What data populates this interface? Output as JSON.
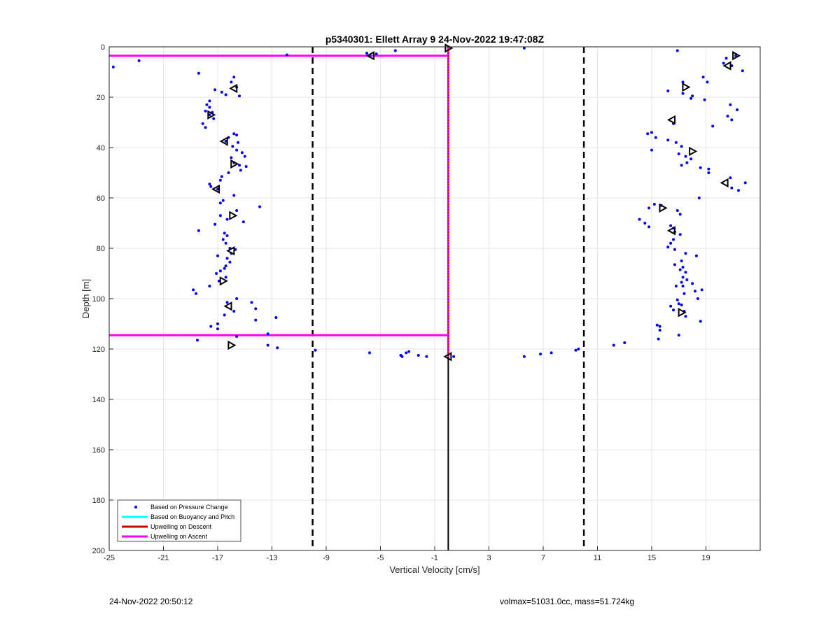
{
  "chart_data": {
    "type": "scatter",
    "title": "p5340301: Ellett Array 9 24-Nov-2022 19:47:08Z",
    "xlabel": "Vertical Velocity [cm/s]",
    "ylabel": "Depth [m]",
    "xlim": [
      -25,
      23
    ],
    "ylim": [
      0,
      200
    ],
    "y_reversed": true,
    "grid": true,
    "xticks": [
      -25,
      -21,
      -17,
      -13,
      -9,
      -5,
      -1,
      3,
      7,
      11,
      15,
      19
    ],
    "yticks": [
      0,
      20,
      40,
      60,
      80,
      100,
      120,
      140,
      160,
      180,
      200
    ],
    "legend_position": "bottom-left",
    "legend": [
      {
        "label": "Based on Pressure Change",
        "color": "#0000ff",
        "marker": "dot"
      },
      {
        "label": "Based on Buoyancy and Pitch",
        "color": "#00ffff",
        "marker": "line"
      },
      {
        "label": "Upwelling on Descent",
        "color": "#cc0000",
        "marker": "line"
      },
      {
        "label": "Upwelling on Ascent",
        "color": "#ff00ff",
        "marker": "line"
      }
    ],
    "threshold_lines": {
      "style": "dashed",
      "color": "#000000",
      "x": [
        -10,
        10
      ]
    },
    "zero_line": {
      "x": 0,
      "y_from": 123,
      "y_to": 200,
      "color": "#000000"
    },
    "upwelling_descent": {
      "color": "#cc0000",
      "x": [
        0,
        0
      ],
      "y": [
        0,
        123
      ]
    },
    "upwelling_ascent": {
      "color": "#ff00ff",
      "segments": [
        {
          "x": [
            -25,
            0
          ],
          "y": [
            3.5,
            3.5
          ]
        },
        {
          "x": [
            -25,
            0
          ],
          "y": [
            114.5,
            114.5
          ]
        },
        {
          "x": [
            0,
            0
          ],
          "y": [
            0,
            123
          ]
        }
      ]
    },
    "series": [
      {
        "name": "Based on Pressure Change",
        "color": "#0000ff",
        "points": [
          [
            -24.7,
            8
          ],
          [
            -22.8,
            5.5
          ],
          [
            -11.9,
            3.2
          ],
          [
            -6.0,
            2.5
          ],
          [
            -5.3,
            2.8
          ],
          [
            -3.9,
            1.5
          ],
          [
            -5.8,
            3.8
          ],
          [
            5.6,
            0.5
          ],
          [
            -18.4,
            10.5
          ],
          [
            -15.8,
            12
          ],
          [
            -16.0,
            14
          ],
          [
            -15.6,
            16
          ],
          [
            -17.2,
            17
          ],
          [
            -16.7,
            18
          ],
          [
            -16.4,
            19
          ],
          [
            -15.4,
            19.5
          ],
          [
            -17.6,
            21.5
          ],
          [
            -17.8,
            23
          ],
          [
            -17.6,
            24
          ],
          [
            -17.9,
            25.5
          ],
          [
            -17.4,
            26
          ],
          [
            -17.6,
            27
          ],
          [
            -17.3,
            28.5
          ],
          [
            -18.1,
            30.5
          ],
          [
            -17.9,
            32
          ],
          [
            -15.8,
            34.5
          ],
          [
            -15.6,
            35
          ],
          [
            -16.2,
            36
          ],
          [
            -16.4,
            37.5
          ],
          [
            -15.5,
            38
          ],
          [
            -15.9,
            39.5
          ],
          [
            -15.6,
            41
          ],
          [
            -15.2,
            42
          ],
          [
            -15.0,
            43.5
          ],
          [
            -16.0,
            44
          ],
          [
            -15.8,
            46
          ],
          [
            -15.4,
            47
          ],
          [
            -14.9,
            47.5
          ],
          [
            -15.3,
            49
          ],
          [
            -16.2,
            50
          ],
          [
            -16.7,
            51.5
          ],
          [
            -16.8,
            53
          ],
          [
            -17.6,
            54.5
          ],
          [
            -17.5,
            55.5
          ],
          [
            -17.0,
            56.5
          ],
          [
            -15.8,
            59
          ],
          [
            -16.6,
            61
          ],
          [
            -16.8,
            62
          ],
          [
            -15.6,
            65
          ],
          [
            -13.9,
            63.5
          ],
          [
            -16.8,
            67
          ],
          [
            -16.3,
            68.5
          ],
          [
            -15.1,
            69.5
          ],
          [
            -17.2,
            70.5
          ],
          [
            -18.4,
            73
          ],
          [
            -16.5,
            74
          ],
          [
            -16.3,
            75
          ],
          [
            -16.6,
            76.5
          ],
          [
            -16.4,
            78
          ],
          [
            -16.1,
            80
          ],
          [
            -15.7,
            80.5
          ],
          [
            -16.0,
            82
          ],
          [
            -17.0,
            83
          ],
          [
            -16.3,
            84
          ],
          [
            -16.1,
            85.5
          ],
          [
            -16.4,
            87
          ],
          [
            -16.5,
            88
          ],
          [
            -16.8,
            89
          ],
          [
            -17.1,
            90
          ],
          [
            -16.4,
            91.5
          ],
          [
            -16.9,
            93
          ],
          [
            -17.6,
            95
          ],
          [
            -18.8,
            96.5
          ],
          [
            -18.6,
            98
          ],
          [
            -15.6,
            100
          ],
          [
            -16.3,
            101.5
          ],
          [
            -14.5,
            101.5
          ],
          [
            -14.2,
            104
          ],
          [
            -15.8,
            105
          ],
          [
            -16.5,
            106.5
          ],
          [
            -12.7,
            107.5
          ],
          [
            -14.2,
            108.5
          ],
          [
            -17.0,
            110
          ],
          [
            -17.5,
            111
          ],
          [
            -17.0,
            112
          ],
          [
            -13.3,
            114
          ],
          [
            -15.6,
            115
          ],
          [
            -18.5,
            116.5
          ],
          [
            -13.3,
            118.5
          ],
          [
            -12.6,
            119.5
          ],
          [
            -9.8,
            120.5
          ],
          [
            -5.8,
            121.5
          ],
          [
            -2.9,
            121
          ],
          [
            -3.1,
            121.5
          ],
          [
            -3.5,
            122.5
          ],
          [
            -3.4,
            123
          ],
          [
            -2.2,
            122.5
          ],
          [
            -1.6,
            123
          ],
          [
            0.4,
            123
          ],
          [
            5.6,
            123
          ],
          [
            6.8,
            122
          ],
          [
            7.6,
            121.5
          ],
          [
            9.4,
            120.5
          ],
          [
            9.6,
            120
          ],
          [
            12.2,
            118.5
          ],
          [
            13.0,
            117.5
          ],
          [
            16.9,
            1.5
          ],
          [
            21.2,
            3.5
          ],
          [
            20.5,
            4.5
          ],
          [
            20.3,
            6.5
          ],
          [
            21.7,
            9.5
          ],
          [
            20.9,
            7.5
          ],
          [
            18.8,
            12
          ],
          [
            17.3,
            14
          ],
          [
            19.1,
            14
          ],
          [
            16.2,
            17.5
          ],
          [
            17.3,
            18.5
          ],
          [
            18.0,
            19.5
          ],
          [
            17.9,
            20.5
          ],
          [
            18.9,
            21
          ],
          [
            21.3,
            25
          ],
          [
            20.8,
            23
          ],
          [
            20.6,
            27.5
          ],
          [
            20.9,
            29
          ],
          [
            19.5,
            31.5
          ],
          [
            16.6,
            30.5
          ],
          [
            15.0,
            34
          ],
          [
            14.7,
            34.5
          ],
          [
            15.3,
            36
          ],
          [
            16.2,
            37
          ],
          [
            16.8,
            38
          ],
          [
            17.2,
            39.5
          ],
          [
            15.0,
            41
          ],
          [
            17.0,
            42.5
          ],
          [
            17.5,
            43.5
          ],
          [
            17.9,
            44.5
          ],
          [
            17.6,
            46
          ],
          [
            17.2,
            47
          ],
          [
            18.6,
            48
          ],
          [
            19.2,
            48.5
          ],
          [
            19.2,
            50
          ],
          [
            20.8,
            52
          ],
          [
            20.9,
            56
          ],
          [
            21.4,
            57
          ],
          [
            21.9,
            54
          ],
          [
            18.5,
            60
          ],
          [
            15.2,
            62.5
          ],
          [
            15.7,
            63
          ],
          [
            14.8,
            64
          ],
          [
            16.9,
            65
          ],
          [
            17.1,
            66.5
          ],
          [
            14.1,
            68.5
          ],
          [
            14.5,
            70
          ],
          [
            14.8,
            71.5
          ],
          [
            16.4,
            71
          ],
          [
            16.6,
            72
          ],
          [
            16.7,
            73.5
          ],
          [
            17.1,
            74.5
          ],
          [
            16.6,
            76.5
          ],
          [
            16.4,
            78
          ],
          [
            16.2,
            79.5
          ],
          [
            16.7,
            80.5
          ],
          [
            17.5,
            82
          ],
          [
            18.3,
            83
          ],
          [
            17.2,
            85
          ],
          [
            16.7,
            86.5
          ],
          [
            17.3,
            87.5
          ],
          [
            17.1,
            88.5
          ],
          [
            17.5,
            89.5
          ],
          [
            17.3,
            91.5
          ],
          [
            17.6,
            92.5
          ],
          [
            17.2,
            93.5
          ],
          [
            18.0,
            94
          ],
          [
            17.3,
            95
          ],
          [
            16.8,
            95
          ],
          [
            18.2,
            97
          ],
          [
            18.7,
            96.5
          ],
          [
            17.4,
            98
          ],
          [
            18.4,
            100
          ],
          [
            16.9,
            100.5
          ],
          [
            17.0,
            102
          ],
          [
            17.2,
            102.5
          ],
          [
            16.4,
            103
          ],
          [
            16.6,
            104.5
          ],
          [
            17.4,
            105
          ],
          [
            17.5,
            107
          ],
          [
            18.6,
            109
          ],
          [
            15.6,
            111
          ],
          [
            15.4,
            110.5
          ],
          [
            15.6,
            112.5
          ],
          [
            17.0,
            114.5
          ],
          [
            15.5,
            116
          ]
        ]
      },
      {
        "name": "triangle_markers",
        "color": "#000000",
        "points": [
          [
            -15.8,
            16.5
          ],
          [
            -17.5,
            27
          ],
          [
            -16.5,
            37.5
          ],
          [
            -15.8,
            46.5
          ],
          [
            -17.1,
            56.5
          ],
          [
            -15.9,
            67
          ],
          [
            -16.0,
            81
          ],
          [
            -16.6,
            93
          ],
          [
            -16.2,
            103
          ],
          [
            -16.0,
            118.5
          ],
          [
            -5.7,
            3.5
          ],
          [
            0,
            0.5
          ],
          [
            0,
            123
          ],
          [
            21.2,
            3.5
          ],
          [
            20.6,
            7.5
          ],
          [
            17.5,
            16
          ],
          [
            16.5,
            29
          ],
          [
            18.0,
            41.5
          ],
          [
            20.4,
            54
          ],
          [
            15.8,
            64
          ],
          [
            16.5,
            73
          ],
          [
            17.2,
            105.5
          ]
        ]
      }
    ]
  },
  "footer": {
    "left": "24-Nov-2022 20:50:12",
    "right": "volmax=51031.0cc, mass=51.724kg"
  }
}
